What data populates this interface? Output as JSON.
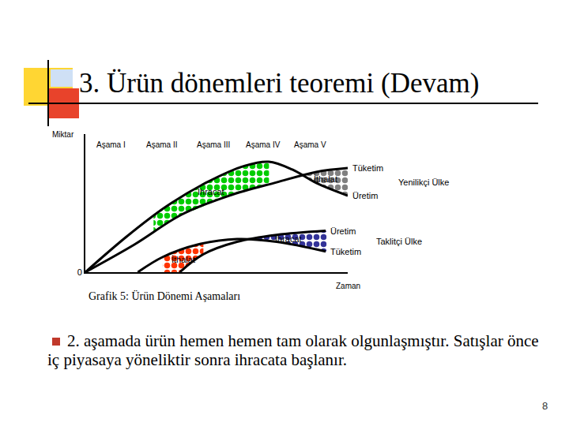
{
  "slide": {
    "title": "3. Ürün dönemleri teoremi (Devam)",
    "bullet": "2. aşamada ürün hemen hemen tam olarak olgunlaşmıştır. Satışlar önce iç piyasaya yöneliktir sonra ihracata başlanır.",
    "page": "8"
  },
  "chart_data": {
    "type": "line",
    "title": "Grafik 5: Ürün Dönemi Aşamaları",
    "x_label": "Zaman",
    "y_label": "Miktar",
    "xlim": [
      0,
      100
    ],
    "ylim": [
      0,
      100
    ],
    "yticks": [
      0
    ],
    "tick_labels": "y",
    "grid": false,
    "color": "#000000",
    "stages": [
      {
        "label": "Aşama I",
        "x": 9.9
      },
      {
        "label": "Aşama II",
        "x": 29.2
      },
      {
        "label": "Aşama III",
        "x": 48.8
      },
      {
        "label": "Aşama IV",
        "x": 67.8
      },
      {
        "label": "Aşama V",
        "x": 85.8
      }
    ],
    "groups": [
      {
        "name": "Yenilikçi Ülke",
        "series": [
          {
            "name": "Üretim",
            "x": [
              0,
              15.7,
              30.7,
              45.8,
              60.8,
              69.9,
              78.9,
              88,
              100
            ],
            "values": [
              0,
              25.7,
              47.4,
              64.6,
              77.1,
              80,
              74.3,
              64.6,
              55.4
            ]
          },
          {
            "name": "Tüketim",
            "x": [
              0,
              18.7,
              36.7,
              54.8,
              72.9,
              88,
              100
            ],
            "values": [
              0,
              20,
              41.7,
              55.4,
              65.1,
              72.6,
              75.4
            ]
          }
        ],
        "regions": [
          {
            "label": "İhracat",
            "color": "#00cc00",
            "from": 26,
            "to": 70
          },
          {
            "label": "İthalat",
            "color": "#808080",
            "from": 83,
            "to": 100
          }
        ]
      },
      {
        "name": "Taklitçi Ülke",
        "series": [
          {
            "name": "Üretim",
            "x": [
              36,
              45,
              57.8,
              72.9,
              91.6
            ],
            "values": [
              0,
              13,
              22,
              27,
              30
            ]
          },
          {
            "name": "Tüketim",
            "x": [
              20,
              29.5,
              42.8,
              57.8,
              72.9,
              91.6
            ],
            "values": [
              0,
              11,
              20,
              24,
              22,
              15
            ]
          }
        ],
        "regions": [
          {
            "label": "İthalat",
            "color": "#ff3300",
            "from": 29.5,
            "to": 45
          },
          {
            "label": "İhracat",
            "color": "#333399",
            "from": 63,
            "to": 92
          }
        ]
      }
    ]
  }
}
